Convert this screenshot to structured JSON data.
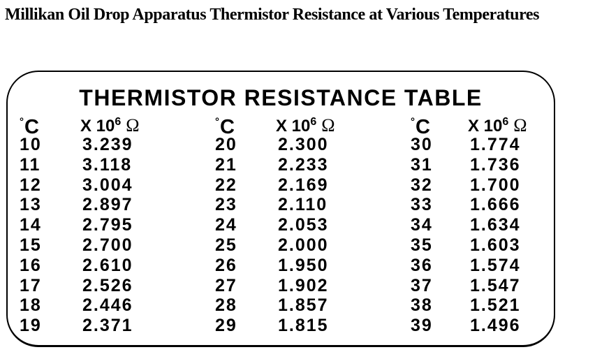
{
  "page_title": "Millikan Oil Drop Apparatus Thermistor Resistance at Various Temperatures",
  "table": {
    "title": "THERMISTOR RESISTANCE TABLE",
    "headers": {
      "temp": {
        "degree": "°",
        "letter": "C"
      },
      "resistance": {
        "base": "X 10",
        "exponent": "6",
        "omega": "Ω"
      }
    },
    "groups": [
      {
        "rows": [
          {
            "temp": "10",
            "resistance": "3.239"
          },
          {
            "temp": "11",
            "resistance": "3.118"
          },
          {
            "temp": "12",
            "resistance": "3.004"
          },
          {
            "temp": "13",
            "resistance": "2.897"
          },
          {
            "temp": "14",
            "resistance": "2.795"
          },
          {
            "temp": "15",
            "resistance": "2.700"
          },
          {
            "temp": "16",
            "resistance": "2.610"
          },
          {
            "temp": "17",
            "resistance": "2.526"
          },
          {
            "temp": "18",
            "resistance": "2.446"
          },
          {
            "temp": "19",
            "resistance": "2.371"
          }
        ]
      },
      {
        "rows": [
          {
            "temp": "20",
            "resistance": "2.300"
          },
          {
            "temp": "21",
            "resistance": "2.233"
          },
          {
            "temp": "22",
            "resistance": "2.169"
          },
          {
            "temp": "23",
            "resistance": "2.110"
          },
          {
            "temp": "24",
            "resistance": "2.053"
          },
          {
            "temp": "25",
            "resistance": "2.000"
          },
          {
            "temp": "26",
            "resistance": "1.950"
          },
          {
            "temp": "27",
            "resistance": "1.902"
          },
          {
            "temp": "28",
            "resistance": "1.857"
          },
          {
            "temp": "29",
            "resistance": "1.815"
          }
        ]
      },
      {
        "rows": [
          {
            "temp": "30",
            "resistance": "1.774"
          },
          {
            "temp": "31",
            "resistance": "1.736"
          },
          {
            "temp": "32",
            "resistance": "1.700"
          },
          {
            "temp": "33",
            "resistance": "1.666"
          },
          {
            "temp": "34",
            "resistance": "1.634"
          },
          {
            "temp": "35",
            "resistance": "1.603"
          },
          {
            "temp": "36",
            "resistance": "1.574"
          },
          {
            "temp": "37",
            "resistance": "1.547"
          },
          {
            "temp": "38",
            "resistance": "1.521"
          },
          {
            "temp": "39",
            "resistance": "1.496"
          }
        ]
      }
    ]
  },
  "colors": {
    "ink": "#000000",
    "background": "#ffffff"
  }
}
